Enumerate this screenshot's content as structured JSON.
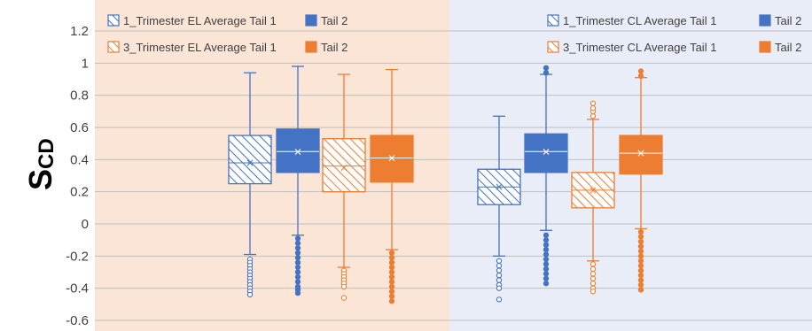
{
  "chart_data": {
    "type": "box",
    "ylabel_main": "S",
    "ylabel_sub": "CD",
    "ylim": [
      -0.6,
      1.2
    ],
    "yticks": [
      "1.2",
      "1",
      "0.8",
      "0.6",
      "0.4",
      "0.2",
      "0",
      "-0.2",
      "-0.4",
      "-0.6"
    ],
    "ytick_values": [
      1.2,
      1.0,
      0.8,
      0.6,
      0.4,
      0.2,
      0.0,
      -0.2,
      -0.4,
      -0.6
    ],
    "grid": true,
    "colors": {
      "blue": "#4472c4",
      "orange": "#ed7d31",
      "panel_left": "#fbe5d6",
      "panel_right": "#e8edf7",
      "grid": "#bfbfbf"
    },
    "panels": [
      {
        "name": "EL",
        "legend": [
          {
            "label": "1_Trimester EL Average Tail 1",
            "color": "#4472c4",
            "pattern": "hatched"
          },
          {
            "label": "Tail 2",
            "color": "#4472c4",
            "pattern": "solid"
          },
          {
            "label": "3_Trimester EL Average Tail 1",
            "color": "#ed7d31",
            "pattern": "hatched"
          },
          {
            "label": "Tail 2",
            "color": "#ed7d31",
            "pattern": "solid"
          }
        ],
        "boxes": [
          {
            "series": "1_Trimester EL Average Tail 1",
            "color": "#4472c4",
            "pattern": "hatched",
            "whisker_low": -0.19,
            "q1": 0.25,
            "median": 0.38,
            "q3": 0.55,
            "whisker_high": 0.94,
            "mean": 0.38,
            "outliers": [
              -0.22,
              -0.24,
              -0.26,
              -0.28,
              -0.3,
              -0.32,
              -0.34,
              -0.36,
              -0.38,
              -0.4,
              -0.42,
              -0.44
            ]
          },
          {
            "series": "Tail 2",
            "color": "#4472c4",
            "pattern": "solid",
            "whisker_low": -0.07,
            "q1": 0.32,
            "median": 0.45,
            "q3": 0.59,
            "whisker_high": 0.98,
            "mean": 0.45,
            "outliers": [
              -0.09,
              -0.12,
              -0.15,
              -0.18,
              -0.21,
              -0.24,
              -0.27,
              -0.3,
              -0.33,
              -0.36,
              -0.39,
              -0.41,
              -0.43
            ]
          },
          {
            "series": "3_Trimester EL Average Tail 1",
            "color": "#ed7d31",
            "pattern": "hatched",
            "whisker_low": -0.27,
            "q1": 0.2,
            "median": 0.36,
            "q3": 0.53,
            "whisker_high": 0.93,
            "mean": 0.35,
            "outliers": [
              -0.29,
              -0.31,
              -0.33,
              -0.35,
              -0.37,
              -0.39,
              -0.46
            ]
          },
          {
            "series": "Tail 2",
            "color": "#ed7d31",
            "pattern": "solid",
            "whisker_low": -0.16,
            "q1": 0.26,
            "median": 0.41,
            "q3": 0.55,
            "whisker_high": 0.96,
            "mean": 0.41,
            "outliers": [
              -0.18,
              -0.21,
              -0.24,
              -0.27,
              -0.3,
              -0.33,
              -0.36,
              -0.39,
              -0.42,
              -0.45,
              -0.48
            ]
          }
        ]
      },
      {
        "name": "CL",
        "legend": [
          {
            "label": "1_Trimester CL Average Tail 1",
            "color": "#4472c4",
            "pattern": "hatched"
          },
          {
            "label": "Tail 2",
            "color": "#4472c4",
            "pattern": "solid"
          },
          {
            "label": "3_Trimester CL Average Tail 1",
            "color": "#ed7d31",
            "pattern": "hatched"
          },
          {
            "label": "Tail 2",
            "color": "#ed7d31",
            "pattern": "solid"
          }
        ],
        "boxes": [
          {
            "series": "1_Trimester CL Average Tail 1",
            "color": "#4472c4",
            "pattern": "hatched",
            "whisker_low": -0.2,
            "q1": 0.12,
            "median": 0.23,
            "q3": 0.34,
            "whisker_high": 0.67,
            "mean": 0.23,
            "outliers": [
              -0.23,
              -0.26,
              -0.29,
              -0.32,
              -0.35,
              -0.38,
              -0.4,
              -0.47
            ]
          },
          {
            "series": "Tail 2",
            "color": "#4472c4",
            "pattern": "solid",
            "whisker_low": -0.04,
            "q1": 0.32,
            "median": 0.45,
            "q3": 0.56,
            "whisker_high": 0.93,
            "mean": 0.45,
            "outliers": [
              -0.07,
              -0.1,
              -0.13,
              -0.16,
              -0.19,
              -0.22,
              -0.25,
              -0.28,
              -0.31,
              -0.34,
              -0.37,
              0.94,
              0.97
            ]
          },
          {
            "series": "3_Trimester CL Average Tail 1",
            "color": "#ed7d31",
            "pattern": "hatched",
            "whisker_low": -0.23,
            "q1": 0.1,
            "median": 0.21,
            "q3": 0.32,
            "whisker_high": 0.65,
            "mean": 0.21,
            "outliers": [
              -0.25,
              -0.28,
              -0.31,
              -0.34,
              -0.37,
              -0.4,
              -0.42,
              0.67,
              0.7,
              0.72,
              0.75
            ]
          },
          {
            "series": "Tail 2",
            "color": "#ed7d31",
            "pattern": "solid",
            "whisker_low": -0.03,
            "q1": 0.31,
            "median": 0.44,
            "q3": 0.55,
            "whisker_high": 0.91,
            "mean": 0.44,
            "outliers": [
              -0.05,
              -0.08,
              -0.11,
              -0.14,
              -0.17,
              -0.2,
              -0.23,
              -0.26,
              -0.29,
              -0.32,
              -0.35,
              -0.38,
              -0.41,
              0.92,
              0.95
            ]
          }
        ]
      }
    ]
  }
}
